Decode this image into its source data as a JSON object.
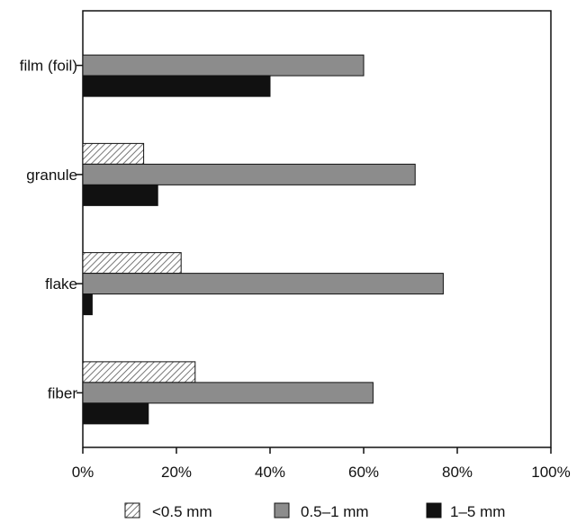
{
  "chart_data": {
    "type": "bar",
    "orientation": "horizontal",
    "categories": [
      "film (foil)",
      "granule",
      "flake",
      "fiber"
    ],
    "series": [
      {
        "name": "<0.5 mm",
        "values": [
          0,
          13,
          21,
          24
        ],
        "color": "#ffffff",
        "pattern": "diagonal-hatch"
      },
      {
        "name": "0.5–1 mm",
        "values": [
          60,
          71,
          77,
          62
        ],
        "color": "#8c8c8c",
        "pattern": "solid"
      },
      {
        "name": "1–5 mm",
        "values": [
          40,
          16,
          2,
          14
        ],
        "color": "#111111",
        "pattern": "solid"
      }
    ],
    "xticks": [
      "0%",
      "20%",
      "40%",
      "60%",
      "80%",
      "100%"
    ],
    "xlim": [
      0,
      100
    ],
    "unit": "%",
    "grid": false,
    "legend_position": "bottom"
  }
}
